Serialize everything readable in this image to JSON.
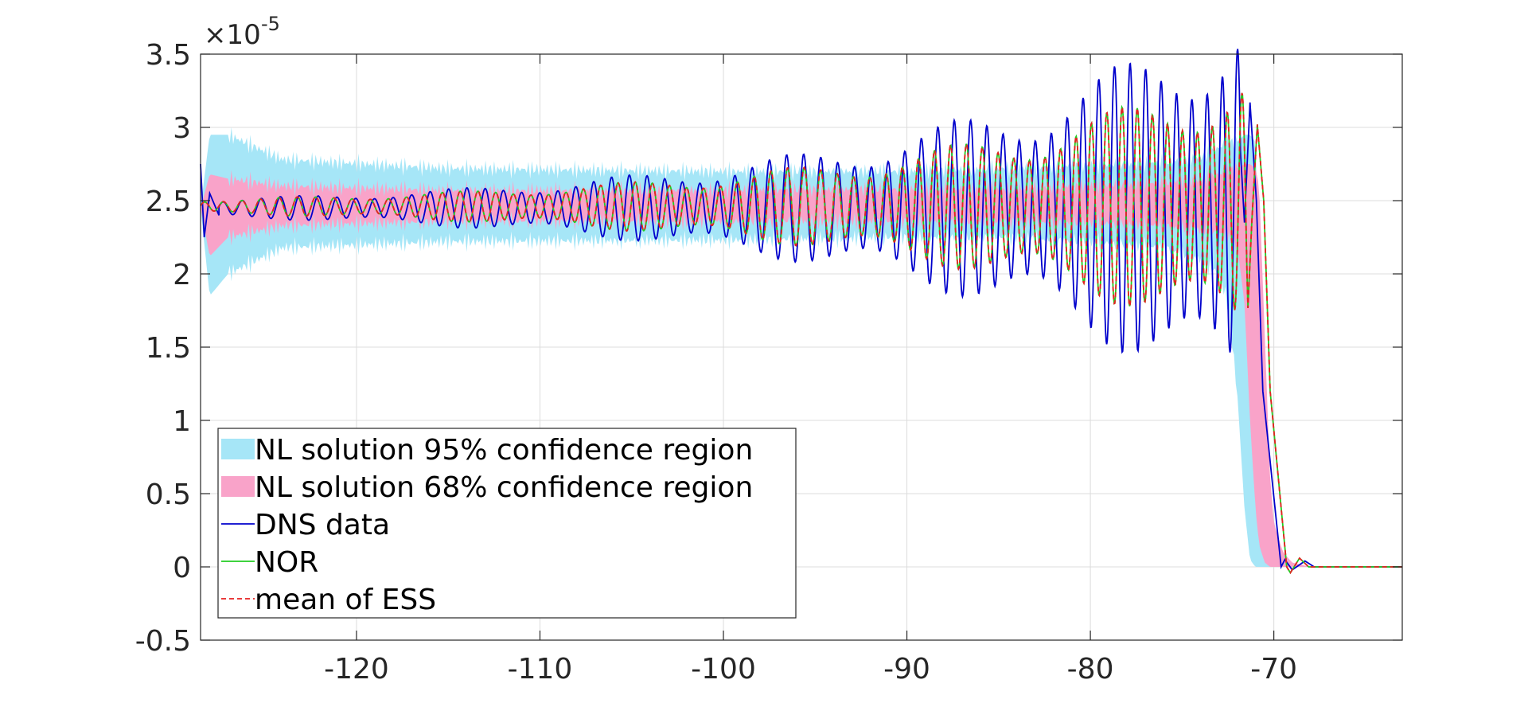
{
  "chart_data": {
    "type": "line",
    "title": "",
    "xlabel": "",
    "ylabel": "",
    "y_multiplier": {
      "base": "10",
      "exponent": "-5"
    },
    "xlim": [
      -128.5,
      -63
    ],
    "ylim": [
      -0.5,
      3.5
    ],
    "grid": true,
    "legend_placement": "bottom-left",
    "xticks": [
      -120,
      -110,
      -100,
      -90,
      -80,
      -70
    ],
    "xtick_labels": [
      "-120",
      "-110",
      "-100",
      "-90",
      "-80",
      "-70"
    ],
    "yticks": [
      3.5,
      3,
      2.5,
      2,
      1.5,
      1,
      0.5,
      0,
      -0.5
    ],
    "ytick_labels": [
      "3.5",
      "3",
      "2.5",
      "2",
      "1.5",
      "1",
      "0.5",
      "0",
      "-0.5"
    ],
    "colors": {
      "ci95": "#a6e6f7",
      "ci68": "#f9a3c9",
      "dns": "#0000cc",
      "nor": "#22cc22",
      "ess": "#e62020"
    },
    "series": [
      {
        "name": "NL solution 95% confidence region",
        "kind": "band",
        "x": [
          -128.5,
          -128,
          -127,
          -124,
          -115,
          -100,
          -90,
          -85,
          -80,
          -76,
          -74,
          -73,
          -72.5,
          -72,
          -71.6,
          -71.3,
          -71,
          -70.5,
          -70,
          -69.5,
          -69,
          -68,
          -63
        ],
        "lower": [
          2.45,
          1.85,
          2.0,
          2.18,
          2.22,
          2.23,
          2.25,
          2.25,
          2.22,
          2.18,
          2.1,
          2.0,
          1.8,
          1.2,
          0.4,
          0.05,
          0.0,
          0.0,
          0.0,
          0.0,
          0.0,
          0.0,
          0.0
        ],
        "upper": [
          2.45,
          2.95,
          2.95,
          2.78,
          2.72,
          2.7,
          2.7,
          2.72,
          2.74,
          2.76,
          2.8,
          2.86,
          2.9,
          2.9,
          2.95,
          2.95,
          2.9,
          1.0,
          0.3,
          0.08,
          0.02,
          0.0,
          0.0
        ]
      },
      {
        "name": "NL solution 68% confidence region",
        "kind": "band",
        "x": [
          -128.5,
          -128,
          -127,
          -124,
          -115,
          -100,
          -90,
          -85,
          -80,
          -76,
          -74,
          -73,
          -72.5,
          -72,
          -71.6,
          -71.3,
          -71,
          -70.8,
          -70.5,
          -70.2,
          -70,
          -69.5,
          -69,
          -68,
          -63
        ],
        "lower": [
          2.45,
          2.12,
          2.25,
          2.33,
          2.36,
          2.36,
          2.36,
          2.36,
          2.35,
          2.33,
          2.3,
          2.28,
          2.25,
          2.2,
          1.8,
          1.0,
          0.4,
          0.15,
          0.03,
          0.0,
          0.0,
          0.0,
          0.0,
          0.0,
          0.0
        ],
        "upper": [
          2.45,
          2.68,
          2.65,
          2.6,
          2.57,
          2.57,
          2.58,
          2.58,
          2.6,
          2.62,
          2.64,
          2.68,
          2.7,
          2.72,
          2.75,
          2.75,
          2.72,
          2.6,
          1.6,
          0.6,
          0.3,
          0.1,
          0.03,
          0.0,
          0.0
        ]
      },
      {
        "name": "DNS data",
        "kind": "line",
        "style": "solid",
        "base": 2.45,
        "start_amplitude": 0.05,
        "growth_rate": 0.055,
        "wavelength": [
          1.05,
          0.95,
          0.82
        ],
        "transients": [
          [
            -128.5,
            2.75
          ],
          [
            -128.3,
            2.25
          ],
          [
            -128.0,
            2.55
          ],
          [
            -127.5,
            2.4
          ]
        ],
        "peak": [
          -71.3,
          3.17
        ],
        "drop": [
          -69.6,
          0.0
        ],
        "tail": [
          [
            -69.4,
            0.05
          ],
          [
            -69.0,
            -0.02
          ],
          [
            -68.3,
            0.04
          ],
          [
            -67.8,
            0.0
          ],
          [
            -63,
            0.0
          ]
        ]
      },
      {
        "name": "NOR",
        "kind": "line",
        "style": "solid",
        "base": 2.46,
        "start_amplitude": 0.04,
        "growth_rate": 0.052,
        "wavelength": [
          1.02,
          0.92,
          0.8
        ],
        "peak": [
          -70.9,
          3.02
        ],
        "drop": [
          -69.3,
          0.0
        ],
        "tail": [
          [
            -69.1,
            -0.04
          ],
          [
            -68.6,
            0.06
          ],
          [
            -68.1,
            0.0
          ],
          [
            -63,
            0.0
          ]
        ]
      },
      {
        "name": "mean of ESS",
        "kind": "line",
        "style": "dashed",
        "base": 2.46,
        "start_amplitude": 0.04,
        "growth_rate": 0.052,
        "wavelength": [
          1.02,
          0.92,
          0.8
        ],
        "peak": [
          -70.9,
          3.02
        ],
        "drop": [
          -69.3,
          0.0
        ],
        "tail": [
          [
            -69.1,
            -0.04
          ],
          [
            -68.6,
            0.06
          ],
          [
            -68.1,
            0.0
          ],
          [
            -63,
            0.0
          ]
        ]
      }
    ]
  },
  "legend": {
    "items": [
      {
        "label": "NL solution 95% confidence region",
        "swatch": "patch",
        "color": "#a6e6f7"
      },
      {
        "label": "NL solution 68% confidence region",
        "swatch": "patch",
        "color": "#f9a3c9"
      },
      {
        "label": "DNS data",
        "swatch": "line",
        "color": "#0000cc"
      },
      {
        "label": "NOR",
        "swatch": "line",
        "color": "#22cc22"
      },
      {
        "label": "mean of ESS",
        "swatch": "dash",
        "color": "#e62020"
      }
    ]
  }
}
